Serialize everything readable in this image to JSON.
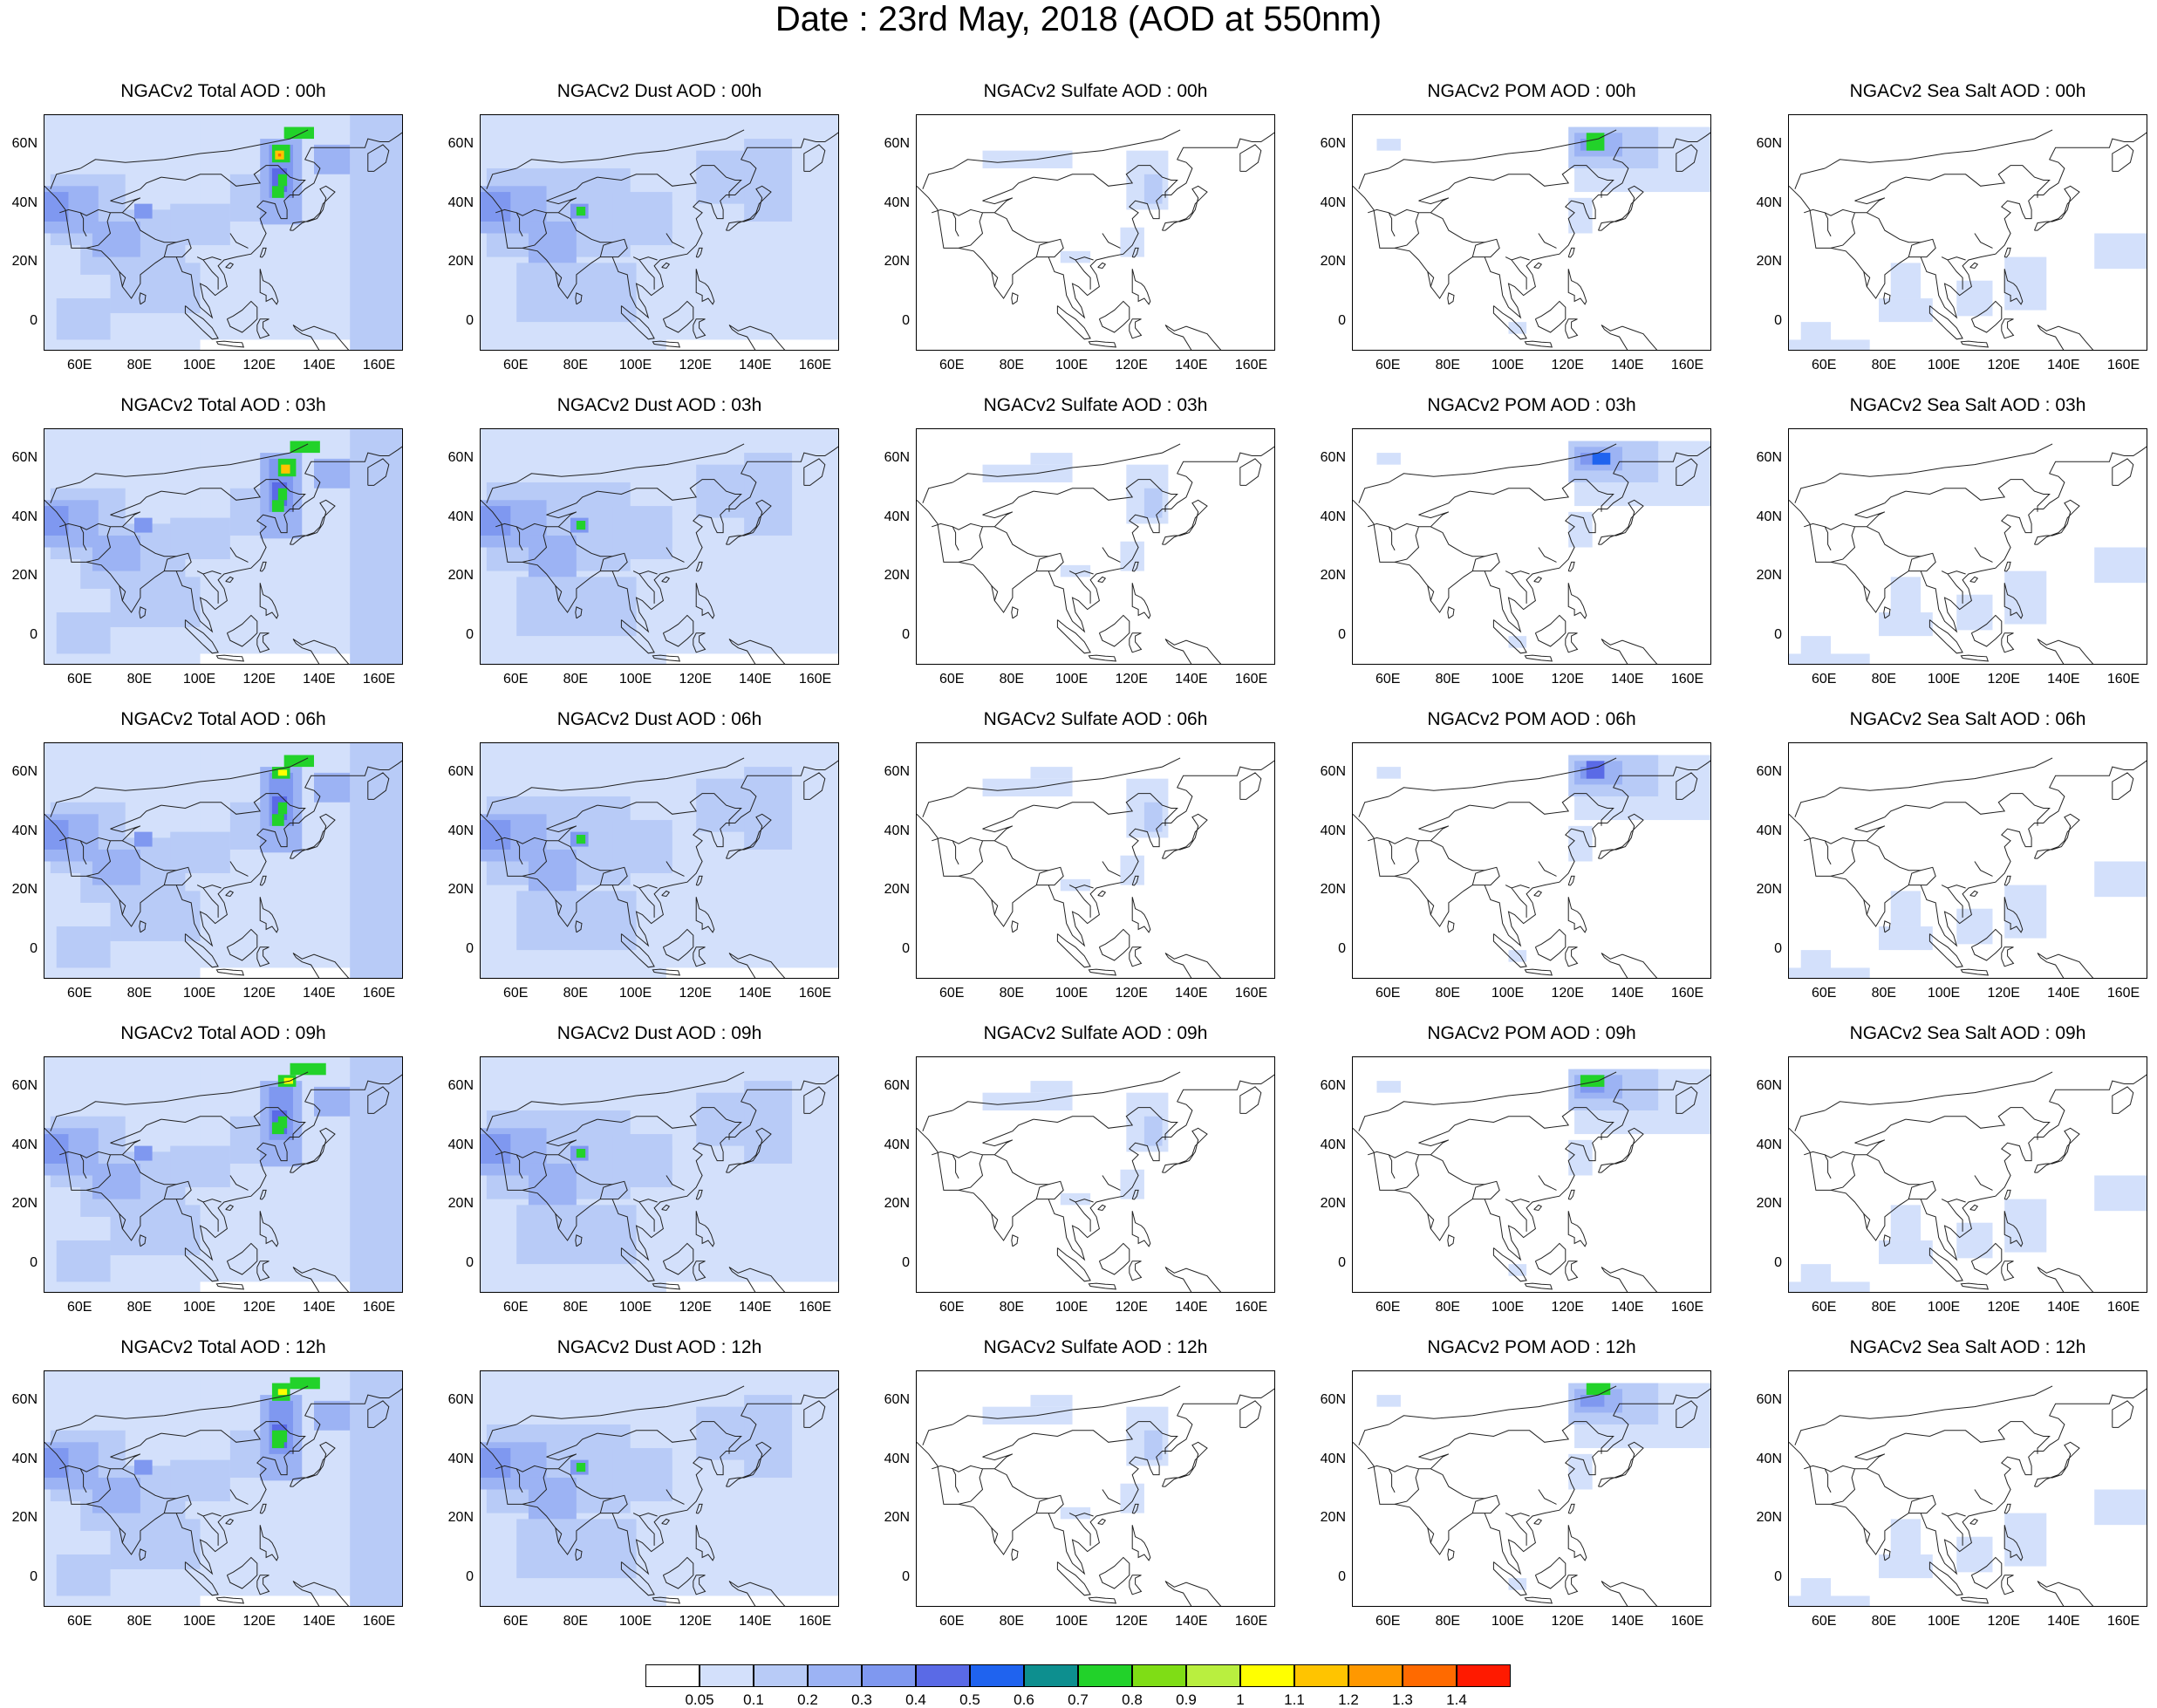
{
  "title": "Date : 23rd May, 2018 (AOD at 550nm)",
  "rows": [
    [
      "NGACv2 Total AOD : 00h",
      "NGACv2 Dust AOD : 00h",
      "NGACv2 Sulfate AOD : 00h",
      "NGACv2 POM AOD : 00h",
      "NGACv2 Sea Salt AOD : 00h"
    ],
    [
      "NGACv2 Total AOD : 03h",
      "NGACv2 Dust AOD : 03h",
      "NGACv2 Sulfate AOD : 03h",
      "NGACv2 POM AOD : 03h",
      "NGACv2 Sea Salt AOD : 03h"
    ],
    [
      "NGACv2 Total AOD : 06h",
      "NGACv2 Dust AOD : 06h",
      "NGACv2 Sulfate AOD : 06h",
      "NGACv2 POM AOD : 06h",
      "NGACv2 Sea Salt AOD : 06h"
    ],
    [
      "NGACv2 Total AOD : 09h",
      "NGACv2 Dust AOD : 09h",
      "NGACv2 Sulfate AOD : 09h",
      "NGACv2 POM AOD : 09h",
      "NGACv2 Sea Salt  AOD : 09h"
    ],
    [
      "NGACv2 Total AOD  : 12h",
      "NGACv2 Dust AOD : 12h",
      "NGACv2 Sulfate AOD : 12h",
      "NGACv2 POM  AOD : 12h",
      "NGACv2 Sea Salt  AOD : 12h"
    ]
  ],
  "lat_ticks": [
    "60N",
    "40N",
    "20N",
    "0"
  ],
  "lon_ticks": [
    "60E",
    "80E",
    "100E",
    "120E",
    "140E",
    "160E"
  ],
  "colorbar": {
    "colors": [
      "#ffffff",
      "#d3e0fb",
      "#b8cbf7",
      "#9cb3f4",
      "#7f98f0",
      "#5a6ae6",
      "#1f63ef",
      "#0d8f8f",
      "#22d22a",
      "#7fdd15",
      "#b9ef3f",
      "#ffff00",
      "#ffc400",
      "#ff9800",
      "#ff6a00",
      "#ff1a00"
    ],
    "labels": [
      "0.05",
      "0.1",
      "0.2",
      "0.3",
      "0.4",
      "0.5",
      "0.6",
      "0.7",
      "0.8",
      "0.9",
      "1",
      "1.1",
      "1.2",
      "1.3",
      "1.4"
    ]
  }
}
